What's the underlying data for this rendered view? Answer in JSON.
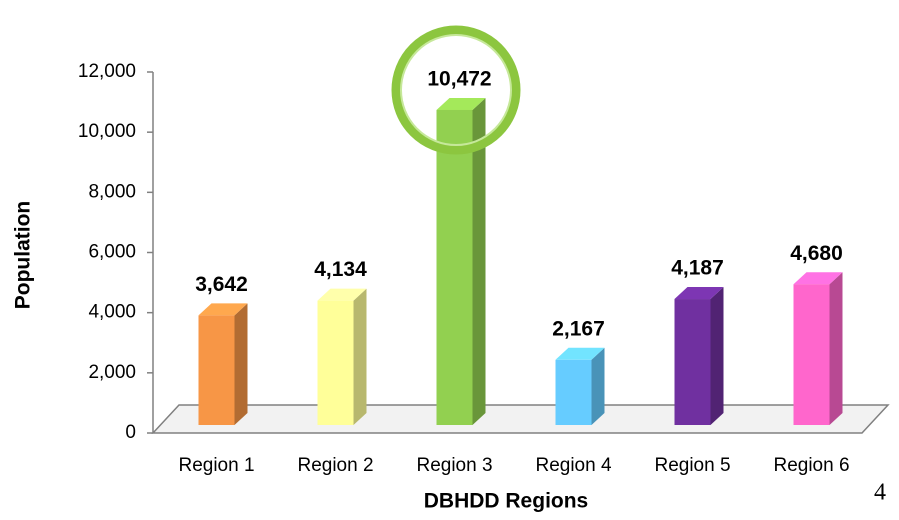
{
  "chart_data": {
    "type": "bar3d",
    "x_label": "DBHDD Regions",
    "y_label": "Population",
    "categories": [
      "Region 1",
      "Region 2",
      "Region 3",
      "Region 4",
      "Region 5",
      "Region 6"
    ],
    "values": [
      3642,
      4134,
      10472,
      2167,
      4187,
      4680
    ],
    "value_labels": [
      "3,642",
      "4,134",
      "10,472",
      "2,167",
      "4,187",
      "4,680"
    ],
    "colors": [
      "#f79646",
      "#ffff99",
      "#92d050",
      "#66ccff",
      "#7030a0",
      "#ff66cc"
    ],
    "ylim": [
      0,
      12000
    ],
    "yticks": [
      0,
      {
        "value": 2000,
        "label": "2,000"
      },
      {
        "value": 4000,
        "label": "4,000"
      },
      {
        "value": 6000,
        "label": "6,000"
      },
      {
        "value": 8000,
        "label": "8,000"
      },
      {
        "value": 10000,
        "label": "10,000"
      },
      {
        "value": 12000,
        "label": "12,000"
      }
    ]
  },
  "page_number": "4"
}
